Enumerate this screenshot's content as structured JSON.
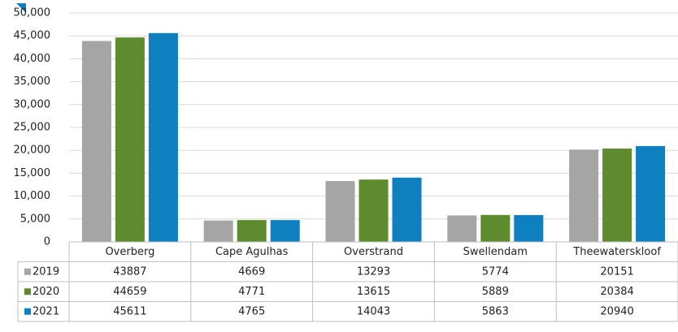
{
  "chart_data": {
    "type": "bar",
    "categories": [
      "Overberg",
      "Cape Agulhas",
      "Overstrand",
      "Swellendam",
      "Theewaterskloof"
    ],
    "series": [
      {
        "name": "2019",
        "color": "#a5a5a5",
        "values": [
          43887,
          4669,
          13293,
          5774,
          20151
        ]
      },
      {
        "name": "2020",
        "color": "#5e8b2e",
        "values": [
          44659,
          4771,
          13615,
          5889,
          20384
        ]
      },
      {
        "name": "2021",
        "color": "#0e80bf",
        "values": [
          45611,
          4765,
          14043,
          5863,
          20940
        ]
      }
    ],
    "ylim": [
      0,
      50000
    ],
    "yticks": [
      0,
      {
        "value": 5000,
        "label": "5,000"
      },
      {
        "value": 10000,
        "label": "10,000"
      },
      {
        "value": 15000,
        "label": "15,000"
      },
      {
        "value": 20000,
        "label": "20,000"
      },
      {
        "value": 25000,
        "label": "25,000"
      },
      {
        "value": 30000,
        "label": "30,000"
      },
      {
        "value": 35000,
        "label": "35,000"
      },
      {
        "value": 40000,
        "label": "40,000"
      },
      {
        "value": 45000,
        "label": "45,000"
      },
      {
        "value": 50000,
        "label": "50,000"
      }
    ],
    "grid": true
  }
}
